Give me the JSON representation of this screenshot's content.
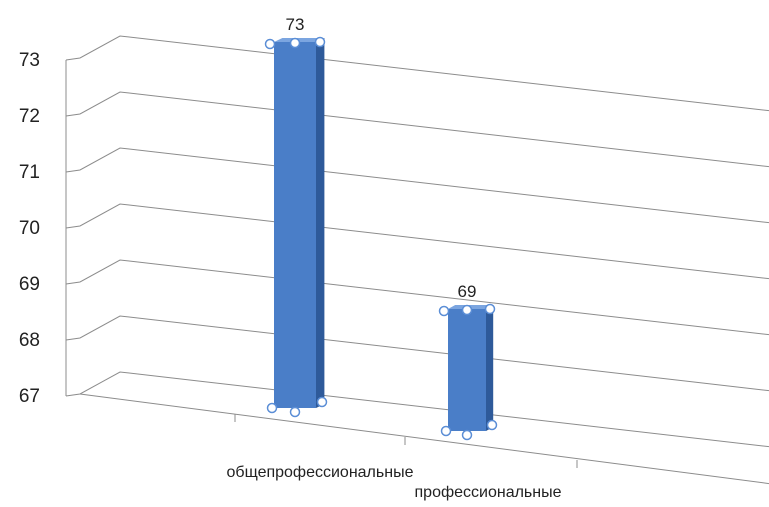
{
  "chart_data": {
    "type": "bar",
    "style": "3d-column",
    "categories": [
      "общепрофессиональные",
      "профессиональные"
    ],
    "values": [
      73,
      69
    ],
    "data_labels": [
      "73",
      "69"
    ],
    "y_ticks": [
      "73",
      "72",
      "71",
      "70",
      "69",
      "68",
      "67"
    ],
    "ylim": [
      67,
      73
    ],
    "grid": true,
    "legend": "none",
    "bar_color": "#4a7ec8",
    "bar_side_color": "#2e5a9a",
    "bar_top_color": "#7ba5e0",
    "gridline_color": "#8c8c8c"
  }
}
